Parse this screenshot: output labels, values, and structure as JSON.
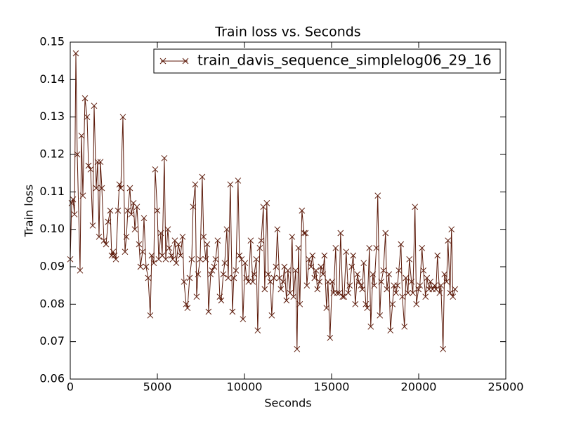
{
  "chart_data": {
    "type": "line",
    "title": "Train loss  vs. Seconds",
    "x_label": "Seconds",
    "y_label": "Train loss",
    "xlim": [
      0,
      25000
    ],
    "xticks": [
      0,
      5000,
      10000,
      15000,
      20000,
      25000
    ],
    "ylim": [
      0.06,
      0.15
    ],
    "yticks": [
      0.06,
      0.07,
      0.08,
      0.09,
      {
        "value": 0.1,
        "label": "0.10"
      },
      0.11,
      0.12,
      0.13,
      0.14,
      0.15
    ],
    "legend": "upper right",
    "marker": "x",
    "x": [
      0,
      81,
      161,
      242,
      322,
      403,
      564,
      645,
      725,
      846,
      967,
      1048,
      1169,
      1290,
      1370,
      1491,
      1572,
      1652,
      1733,
      1814,
      1934,
      2055,
      2176,
      2297,
      2378,
      2458,
      2539,
      2620,
      2740,
      2821,
      2902,
      3023,
      3143,
      3224,
      3305,
      3426,
      3506,
      3627,
      3708,
      3829,
      3949,
      4030,
      4151,
      4232,
      4352,
      4473,
      4594,
      4675,
      4796,
      4876,
      4997,
      5078,
      5199,
      5279,
      5400,
      5481,
      5602,
      5682,
      5803,
      5884,
      6005,
      6085,
      6206,
      6327,
      6448,
      6529,
      6650,
      6730,
      6851,
      6972,
      7053,
      7173,
      7254,
      7335,
      7456,
      7576,
      7657,
      7778,
      7859,
      7939,
      8060,
      8141,
      8262,
      8342,
      8463,
      8584,
      8665,
      8785,
      8866,
      8987,
      9068,
      9188,
      9309,
      9390,
      9511,
      9632,
      9712,
      9833,
      9914,
      10035,
      10115,
      10236,
      10357,
      10478,
      10559,
      10680,
      10760,
      10881,
      10962,
      11083,
      11163,
      11284,
      11365,
      11486,
      11566,
      11687,
      11808,
      11889,
      12009,
      12090,
      12211,
      12292,
      12412,
      12493,
      12614,
      12735,
      12815,
      12936,
      13017,
      13098,
      13178,
      13299,
      13420,
      13501,
      13581,
      13702,
      13823,
      13904,
      14024,
      14105,
      14186,
      14307,
      14387,
      14508,
      14589,
      14710,
      14790,
      14911,
      15032,
      15113,
      15233,
      15314,
      15435,
      15516,
      15636,
      15717,
      15838,
      15959,
      16039,
      16160,
      16241,
      16362,
      16483,
      16563,
      16684,
      16765,
      16845,
      16966,
      17047,
      17168,
      17248,
      17369,
      17450,
      17571,
      17651,
      17772,
      17853,
      17974,
      18095,
      18175,
      18296,
      18377,
      18498,
      18578,
      18699,
      18780,
      18860,
      18981,
      19062,
      19183,
      19263,
      19384,
      19465,
      19586,
      19666,
      19787,
      19868,
      19989,
      20069,
      20190,
      20271,
      20392,
      20472,
      20593,
      20674,
      20795,
      20916,
      20996,
      21077,
      21198,
      21278,
      21399,
      21480,
      21601,
      21681,
      21802,
      21883,
      21964,
      22084
    ],
    "series": [
      {
        "name": "train_davis_sequence_simplelog06_29_16",
        "color": "#5c1a0a",
        "values": [
          0.092,
          0.107,
          0.108,
          0.104,
          0.147,
          0.12,
          0.089,
          0.125,
          0.109,
          0.135,
          0.13,
          0.117,
          0.116,
          0.101,
          0.133,
          0.111,
          0.118,
          0.098,
          0.118,
          0.111,
          0.097,
          0.096,
          0.102,
          0.105,
          0.093,
          0.094,
          0.093,
          0.092,
          0.105,
          0.112,
          0.111,
          0.13,
          0.094,
          0.098,
          0.105,
          0.111,
          0.104,
          0.107,
          0.1,
          0.106,
          0.096,
          0.09,
          0.094,
          0.103,
          0.09,
          0.087,
          0.077,
          0.093,
          0.091,
          0.116,
          0.105,
          0.092,
          0.099,
          0.093,
          0.119,
          0.092,
          0.1,
          0.095,
          0.093,
          0.092,
          0.097,
          0.091,
          0.096,
          0.093,
          0.098,
          0.086,
          0.08,
          0.079,
          0.087,
          0.092,
          0.106,
          0.112,
          0.082,
          0.088,
          0.092,
          0.114,
          0.098,
          0.092,
          0.096,
          0.078,
          0.088,
          0.089,
          0.09,
          0.092,
          0.097,
          0.082,
          0.081,
          0.088,
          0.091,
          0.1,
          0.087,
          0.112,
          0.078,
          0.087,
          0.089,
          0.113,
          0.093,
          0.092,
          0.076,
          0.091,
          0.087,
          0.086,
          0.097,
          0.086,
          0.088,
          0.092,
          0.073,
          0.095,
          0.097,
          0.106,
          0.084,
          0.107,
          0.088,
          0.086,
          0.077,
          0.087,
          0.09,
          0.1,
          0.087,
          0.084,
          0.086,
          0.09,
          0.081,
          0.089,
          0.083,
          0.098,
          0.082,
          0.089,
          0.068,
          0.095,
          0.08,
          0.105,
          0.099,
          0.099,
          0.085,
          0.092,
          0.09,
          0.093,
          0.087,
          0.089,
          0.084,
          0.086,
          0.09,
          0.088,
          0.093,
          0.079,
          0.086,
          0.071,
          0.086,
          0.083,
          0.095,
          0.083,
          0.083,
          0.099,
          0.082,
          0.082,
          0.094,
          0.083,
          0.085,
          0.09,
          0.093,
          0.08,
          0.088,
          0.086,
          0.085,
          0.084,
          0.091,
          0.08,
          0.079,
          0.095,
          0.074,
          0.088,
          0.085,
          0.095,
          0.109,
          0.077,
          0.086,
          0.089,
          0.099,
          0.084,
          0.088,
          0.073,
          0.08,
          0.085,
          0.083,
          0.085,
          0.089,
          0.096,
          0.082,
          0.074,
          0.087,
          0.083,
          0.092,
          0.086,
          0.083,
          0.106,
          0.08,
          0.084,
          0.085,
          0.095,
          0.089,
          0.082,
          0.087,
          0.084,
          0.086,
          0.084,
          0.085,
          0.084,
          0.093,
          0.083,
          0.085,
          0.068,
          0.088,
          0.086,
          0.097,
          0.083,
          0.1,
          0.082,
          0.084
        ]
      }
    ]
  }
}
